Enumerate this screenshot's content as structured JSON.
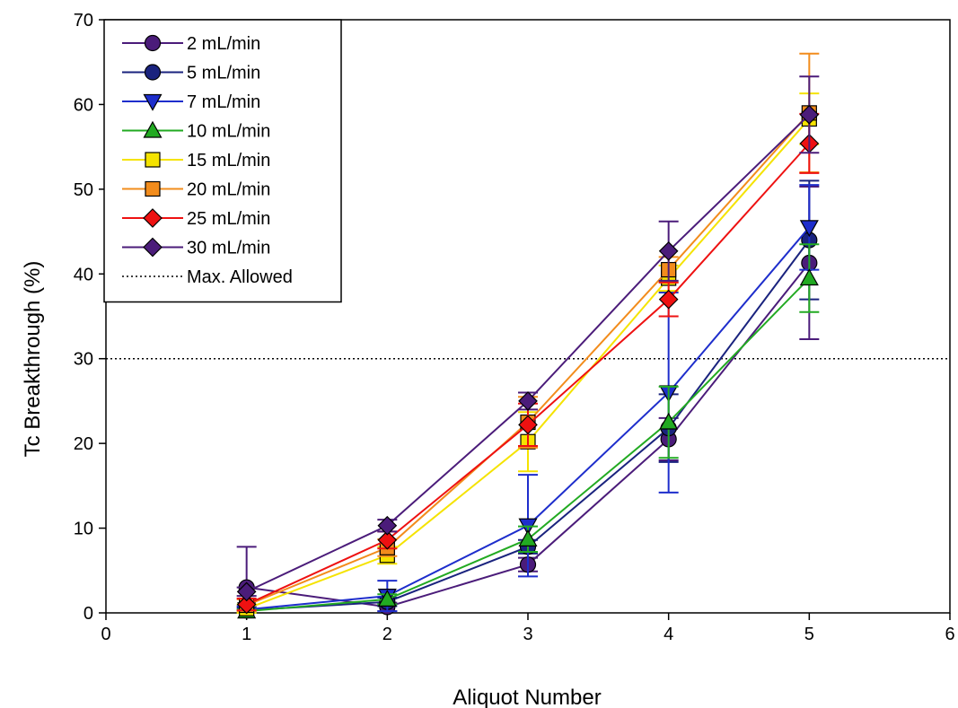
{
  "chart_data": {
    "type": "line",
    "title": "",
    "xlabel": "Aliquot Number",
    "ylabel": "Tc Breakthrough (%)",
    "xlim": [
      0,
      6
    ],
    "ylim": [
      0,
      70
    ],
    "xticks": [
      "0",
      "1",
      "2",
      "3",
      "4",
      "5",
      "6"
    ],
    "yticks": [
      "0",
      "10",
      "20",
      "30",
      "40",
      "50",
      "60",
      "70"
    ],
    "x": [
      1,
      2,
      3,
      4,
      5
    ],
    "grid": false,
    "legend_position": "top-left",
    "reference_line": {
      "name": "Max. Allowed",
      "y": 30,
      "style": "dotted",
      "color": "#000000"
    },
    "series": [
      {
        "name": "2 mL/min",
        "color": "#4B1C7A",
        "marker": "circle",
        "values": [
          3.0,
          0.7,
          5.7,
          20.5,
          41.3
        ],
        "errors": [
          4.8,
          0.5,
          0.8,
          2.5,
          9.0
        ]
      },
      {
        "name": "5 mL/min",
        "color": "#1A237E",
        "marker": "circle",
        "values": [
          0.3,
          1.3,
          7.8,
          21.8,
          44.0
        ],
        "errors": [
          0.3,
          0.5,
          0.8,
          4.0,
          7.0
        ]
      },
      {
        "name": "7 mL/min",
        "color": "#1E2ECC",
        "marker": "triangle-down",
        "values": [
          0.4,
          2.0,
          10.3,
          26.0,
          45.5
        ],
        "errors": [
          0.4,
          1.8,
          6.0,
          11.8,
          5.0
        ]
      },
      {
        "name": "10 mL/min",
        "color": "#22AA22",
        "marker": "triangle-up",
        "values": [
          0.2,
          1.6,
          8.7,
          22.5,
          39.5
        ],
        "errors": [
          0.2,
          0.6,
          1.5,
          4.2,
          4.0
        ]
      },
      {
        "name": "15 mL/min",
        "color": "#F5E300",
        "marker": "square",
        "values": [
          0.5,
          6.8,
          20.2,
          39.5,
          58.3
        ],
        "errors": [
          0.5,
          1.0,
          3.5,
          1.5,
          3.0
        ]
      },
      {
        "name": "20 mL/min",
        "color": "#F28C1C",
        "marker": "square",
        "values": [
          0.9,
          7.7,
          22.5,
          40.5,
          59.0
        ],
        "errors": [
          0.7,
          1.0,
          3.0,
          1.5,
          7.0
        ]
      },
      {
        "name": "25 mL/min",
        "color": "#EE1111",
        "marker": "diamond",
        "values": [
          1.0,
          8.6,
          22.2,
          37.0,
          55.4
        ],
        "errors": [
          0.7,
          1.0,
          2.5,
          2.0,
          3.5
        ]
      },
      {
        "name": "30 mL/min",
        "color": "#4B1C7A",
        "marker": "diamond",
        "values": [
          2.5,
          10.3,
          25.0,
          42.7,
          58.8
        ],
        "errors": [
          0.5,
          0.7,
          1.0,
          3.5,
          4.5
        ]
      }
    ]
  }
}
